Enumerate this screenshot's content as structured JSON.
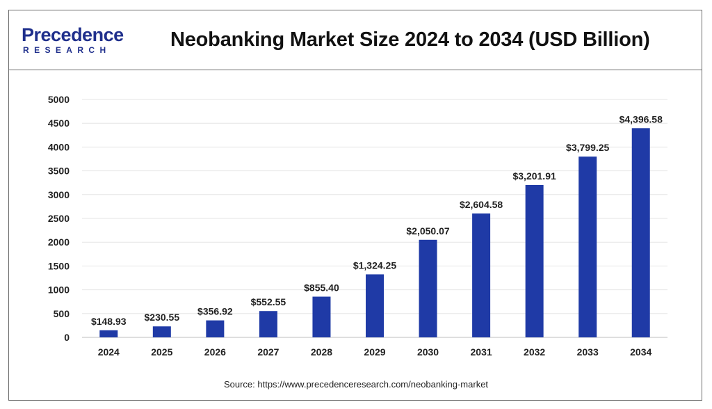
{
  "header": {
    "logo_main": "Precedence",
    "logo_sub": "RESEARCH",
    "title": "Neobanking Market Size 2024 to 2034 (USD Billion)"
  },
  "source": "Source: https://www.precedenceresearch.com/neobanking-market",
  "colors": {
    "bar": "#1f3aa6",
    "brand": "#1f2f8c"
  },
  "chart_data": {
    "type": "bar",
    "categories": [
      "2024",
      "2025",
      "2026",
      "2027",
      "2028",
      "2029",
      "2030",
      "2031",
      "2032",
      "2033",
      "2034"
    ],
    "values": [
      148.93,
      230.55,
      356.92,
      552.55,
      855.4,
      1324.25,
      2050.07,
      2604.58,
      3201.91,
      3799.25,
      4396.58
    ],
    "value_labels": [
      "$148.93",
      "$230.55",
      "$356.92",
      "$552.55",
      "$855.40",
      "$1,324.25",
      "$2,050.07",
      "$2,604.58",
      "$3,201.91",
      "$3,799.25",
      "$4,396.58"
    ],
    "y_ticks": [
      0,
      500,
      1000,
      1500,
      2000,
      2500,
      3000,
      3500,
      4000,
      4500,
      5000
    ],
    "ylim": [
      0,
      5000
    ],
    "grid": true,
    "legend": false,
    "xlabel": "",
    "ylabel": ""
  }
}
